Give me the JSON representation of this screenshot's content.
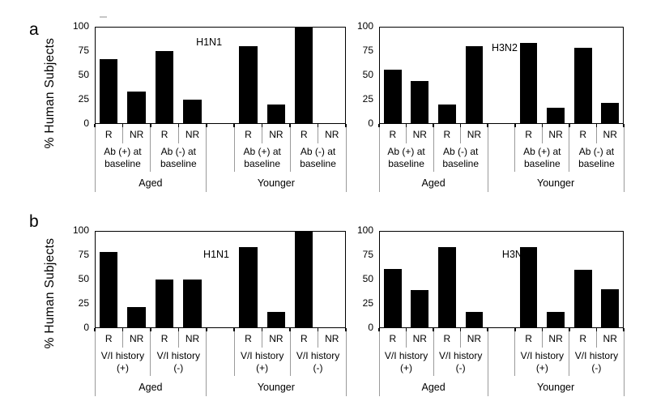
{
  "panels": [
    {
      "letter": "a",
      "ylabel": "% Human Subjects"
    },
    {
      "letter": "b",
      "ylabel": "% Human Subjects"
    }
  ],
  "style": {
    "background": "#ffffff",
    "bar_color": "#000000",
    "axis_color": "#000000",
    "divider_color": "#9a9a9a",
    "text_color": "#000000"
  },
  "chart_data": [
    {
      "type": "bar",
      "panel": "a",
      "title": "H1N1",
      "ylabel": "% Human Subjects",
      "ylim": [
        0,
        100
      ],
      "yticks": [
        0,
        25,
        50,
        75,
        100
      ],
      "grid": false,
      "legend": "none",
      "groups": [
        {
          "group": "Aged",
          "subgroups": [
            {
              "label": [
                "Ab (+) at",
                "baseline"
              ],
              "bars": [
                {
                  "x": "R",
                  "value": 67
                },
                {
                  "x": "NR",
                  "value": 33
                }
              ]
            },
            {
              "label": [
                "Ab (-) at",
                "baseline"
              ],
              "bars": [
                {
                  "x": "R",
                  "value": 75
                },
                {
                  "x": "NR",
                  "value": 25
                }
              ]
            }
          ]
        },
        {
          "group": "Younger",
          "subgroups": [
            {
              "label": [
                "Ab (+) at",
                "baseline"
              ],
              "bars": [
                {
                  "x": "R",
                  "value": 80
                },
                {
                  "x": "NR",
                  "value": 20
                }
              ]
            },
            {
              "label": [
                "Ab (-) at",
                "baseline"
              ],
              "bars": [
                {
                  "x": "R",
                  "value": 100
                },
                {
                  "x": "NR",
                  "value": 0
                }
              ]
            }
          ]
        }
      ]
    },
    {
      "type": "bar",
      "panel": "a",
      "title": "H3N2",
      "ylabel": "% Human Subjects",
      "ylim": [
        0,
        100
      ],
      "yticks": [
        0,
        25,
        50,
        75,
        100
      ],
      "grid": false,
      "legend": "none",
      "groups": [
        {
          "group": "Aged",
          "subgroups": [
            {
              "label": [
                "Ab (+) at",
                "baseline"
              ],
              "bars": [
                {
                  "x": "R",
                  "value": 56
                },
                {
                  "x": "NR",
                  "value": 44
                }
              ]
            },
            {
              "label": [
                "Ab (-) at",
                "baseline"
              ],
              "bars": [
                {
                  "x": "R",
                  "value": 20
                },
                {
                  "x": "NR",
                  "value": 80
                }
              ]
            }
          ]
        },
        {
          "group": "Younger",
          "subgroups": [
            {
              "label": [
                "Ab (+) at",
                "baseline"
              ],
              "bars": [
                {
                  "x": "R",
                  "value": 83
                },
                {
                  "x": "NR",
                  "value": 17
                }
              ]
            },
            {
              "label": [
                "Ab (-) at",
                "baseline"
              ],
              "bars": [
                {
                  "x": "R",
                  "value": 78
                },
                {
                  "x": "NR",
                  "value": 22
                }
              ]
            }
          ]
        }
      ]
    },
    {
      "type": "bar",
      "panel": "b",
      "title": "H1N1",
      "ylabel": "% Human Subjects",
      "ylim": [
        0,
        100
      ],
      "yticks": [
        0,
        25,
        50,
        75,
        100
      ],
      "grid": false,
      "legend": "none",
      "groups": [
        {
          "group": "Aged",
          "subgroups": [
            {
              "label": [
                "V/I history",
                "(+)"
              ],
              "bars": [
                {
                  "x": "R",
                  "value": 78
                },
                {
                  "x": "NR",
                  "value": 22
                }
              ]
            },
            {
              "label": [
                "V/I history",
                "(-)"
              ],
              "bars": [
                {
                  "x": "R",
                  "value": 50
                },
                {
                  "x": "NR",
                  "value": 50
                }
              ]
            }
          ]
        },
        {
          "group": "Younger",
          "subgroups": [
            {
              "label": [
                "V/I history",
                "(+)"
              ],
              "bars": [
                {
                  "x": "R",
                  "value": 83
                },
                {
                  "x": "NR",
                  "value": 17
                }
              ]
            },
            {
              "label": [
                "V/I history",
                "(-)"
              ],
              "bars": [
                {
                  "x": "R",
                  "value": 100
                },
                {
                  "x": "NR",
                  "value": 0
                }
              ]
            }
          ]
        }
      ]
    },
    {
      "type": "bar",
      "panel": "b",
      "title": "H3N2",
      "ylabel": "% Human Subjects",
      "ylim": [
        0,
        100
      ],
      "yticks": [
        0,
        25,
        50,
        75,
        100
      ],
      "grid": false,
      "legend": "none",
      "groups": [
        {
          "group": "Aged",
          "subgroups": [
            {
              "label": [
                "V/I history",
                "(+)"
              ],
              "bars": [
                {
                  "x": "R",
                  "value": 61
                },
                {
                  "x": "NR",
                  "value": 39
                }
              ]
            },
            {
              "label": [
                "V/I history",
                "(-)"
              ],
              "bars": [
                {
                  "x": "R",
                  "value": 83
                },
                {
                  "x": "NR",
                  "value": 17
                }
              ]
            }
          ]
        },
        {
          "group": "Younger",
          "subgroups": [
            {
              "label": [
                "V/I history",
                "(+)"
              ],
              "bars": [
                {
                  "x": "R",
                  "value": 83
                },
                {
                  "x": "NR",
                  "value": 17
                }
              ]
            },
            {
              "label": [
                "V/I history",
                "(-)"
              ],
              "bars": [
                {
                  "x": "R",
                  "value": 60
                },
                {
                  "x": "NR",
                  "value": 40
                }
              ]
            }
          ]
        }
      ]
    }
  ]
}
